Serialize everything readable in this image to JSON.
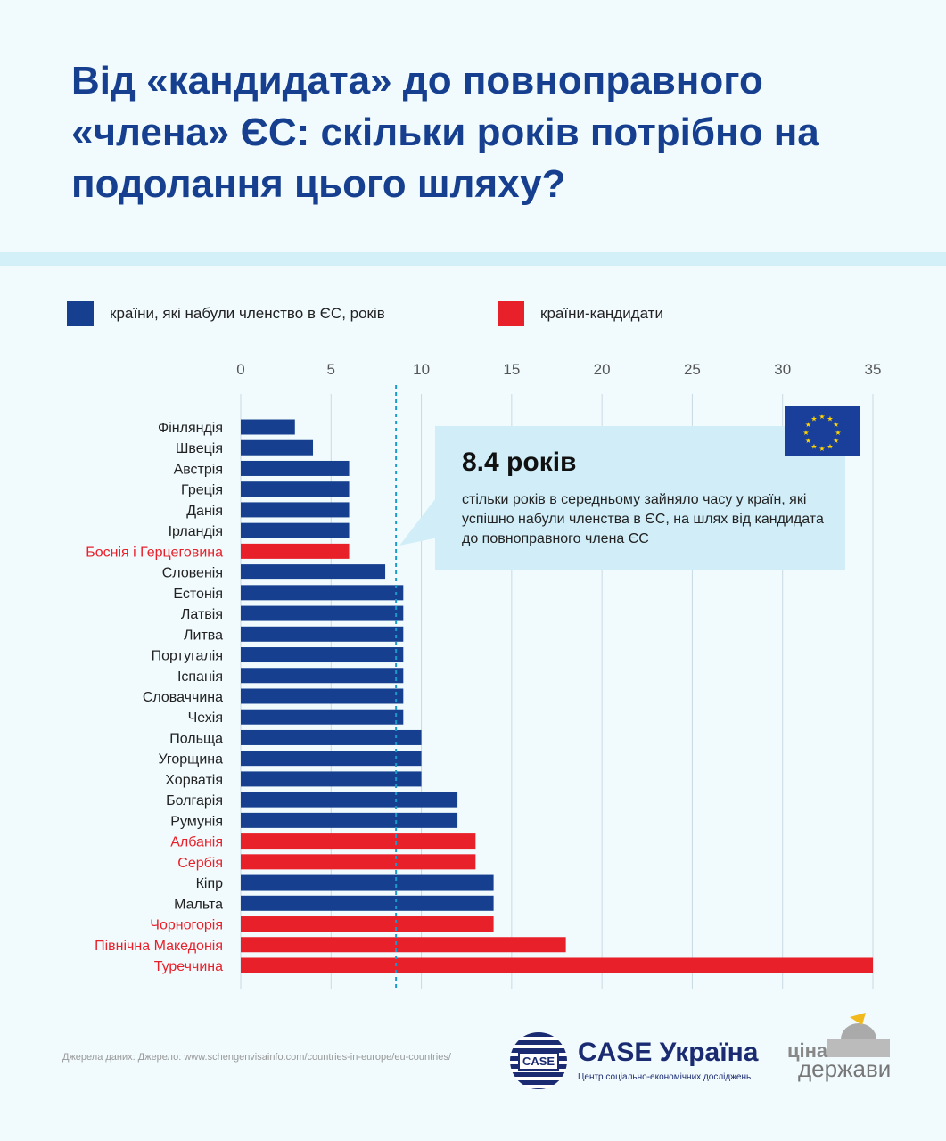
{
  "title": "Від «кандидата» до повноправного «члена» ЄС: скільки років потрібно на подолання цього шляху?",
  "legend": [
    {
      "label": "країни, які набули членство в ЄС, років",
      "color": "#16408f"
    },
    {
      "label": "країни-кандидати",
      "color": "#e8202a"
    }
  ],
  "callout": {
    "value": "8.4 років",
    "text": "стільки років в середньому зайняло часу у країн, які успішно набули членства в ЄС, на шлях від кандидата до повноправного члена ЄС"
  },
  "source": "Джерела даних: Джерело: www.schengenvisainfo.com/countries-in-europe/eu-countries/",
  "logos": {
    "case_badge": "CASE",
    "case_name": "CASE Україна",
    "case_sub": "Центр соціально-економічних досліджень",
    "cina_1": "ціна",
    "cina_2": "держави"
  },
  "chart_data": {
    "type": "bar",
    "orientation": "horizontal",
    "xlim": [
      0,
      35
    ],
    "xticks": [
      0,
      5,
      10,
      15,
      20,
      25,
      30,
      35
    ],
    "grid": true,
    "average_line": 8.4,
    "colors": {
      "member": "#16408f",
      "candidate": "#e8202a"
    },
    "categories": [
      "Фінляндія",
      "Швеція",
      "Австрія",
      "Греція",
      "Данія",
      "Ірландія",
      "Боснія і Герцеговина",
      "Словенія",
      "Естонія",
      "Латвія",
      "Литва",
      "Португалія",
      "Іспанія",
      "Словаччина",
      "Чехія",
      "Польща",
      "Угорщина",
      "Хорватія",
      "Болгарія",
      "Румунія",
      "Албанія",
      "Сербія",
      "Кіпр",
      "Мальта",
      "Чорногорія",
      "Північна Македонія",
      "Туреччина"
    ],
    "values": [
      3,
      4,
      6,
      6,
      6,
      6,
      6,
      8,
      9,
      9,
      9,
      9,
      9,
      9,
      9,
      10,
      10,
      10,
      12,
      12,
      13,
      13,
      14,
      14,
      14,
      18,
      35
    ],
    "status": [
      "member",
      "member",
      "member",
      "member",
      "member",
      "member",
      "candidate",
      "member",
      "member",
      "member",
      "member",
      "member",
      "member",
      "member",
      "member",
      "member",
      "member",
      "member",
      "member",
      "member",
      "candidate",
      "candidate",
      "member",
      "member",
      "candidate",
      "candidate",
      "candidate"
    ]
  }
}
